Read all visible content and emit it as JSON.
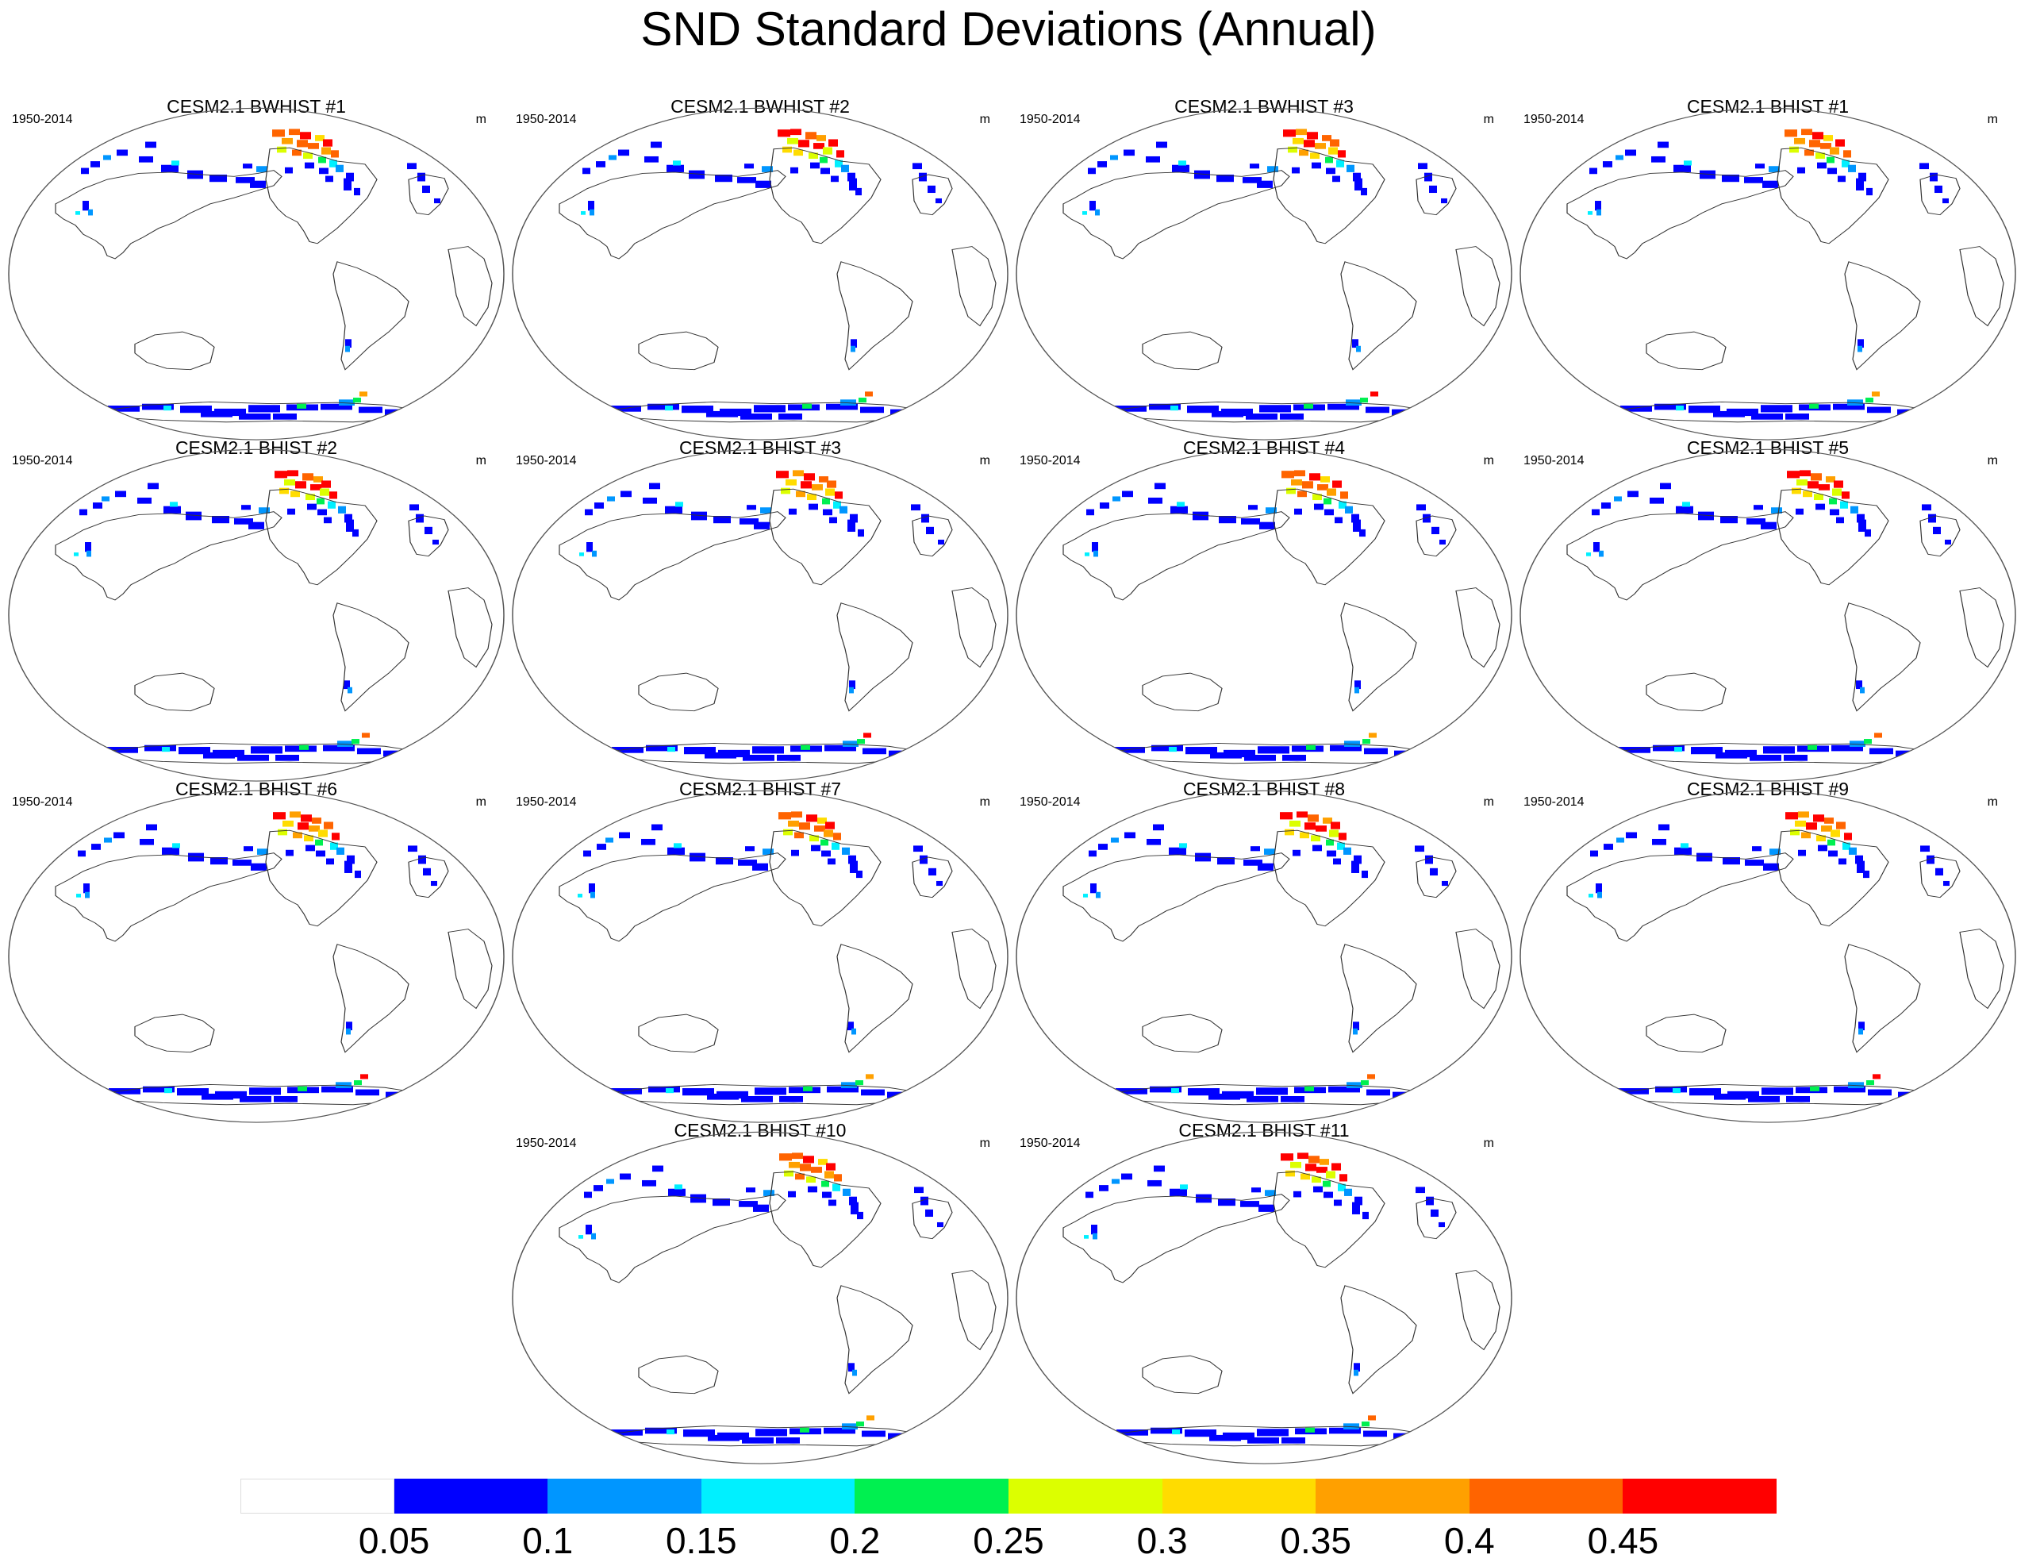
{
  "title": "SND Standard Deviations (Annual)",
  "panels": [
    {
      "title": "CESM2.1 BWHIST #1",
      "period": "1950-2014",
      "units": "m"
    },
    {
      "title": "CESM2.1 BWHIST #2",
      "period": "1950-2014",
      "units": "m"
    },
    {
      "title": "CESM2.1 BWHIST #3",
      "period": "1950-2014",
      "units": "m"
    },
    {
      "title": "CESM2.1 BHIST #1",
      "period": "1950-2014",
      "units": "m"
    },
    {
      "title": "CESM2.1 BHIST #2",
      "period": "1950-2014",
      "units": "m"
    },
    {
      "title": "CESM2.1 BHIST #3",
      "period": "1950-2014",
      "units": "m"
    },
    {
      "title": "CESM2.1 BHIST #4",
      "period": "1950-2014",
      "units": "m"
    },
    {
      "title": "CESM2.1 BHIST #5",
      "period": "1950-2014",
      "units": "m"
    },
    {
      "title": "CESM2.1 BHIST #6",
      "period": "1950-2014",
      "units": "m"
    },
    {
      "title": "CESM2.1 BHIST #7",
      "period": "1950-2014",
      "units": "m"
    },
    {
      "title": "CESM2.1 BHIST #8",
      "period": "1950-2014",
      "units": "m"
    },
    {
      "title": "CESM2.1 BHIST #9",
      "period": "1950-2014",
      "units": "m"
    },
    {
      "title": "CESM2.1 BHIST #10",
      "period": "1950-2014",
      "units": "m"
    },
    {
      "title": "CESM2.1 BHIST #11",
      "period": "1950-2014",
      "units": "m"
    }
  ],
  "colorbar": {
    "labels": [
      "0.05",
      "0.1",
      "0.15",
      "0.2",
      "0.25",
      "0.3",
      "0.35",
      "0.4",
      "0.45"
    ],
    "colors": [
      "#ffffff",
      "#0000ff",
      "#0096ff",
      "#00f0ff",
      "#00f050",
      "#dcff00",
      "#ffdc00",
      "#ffa000",
      "#ff6400",
      "#ff0000"
    ]
  }
}
